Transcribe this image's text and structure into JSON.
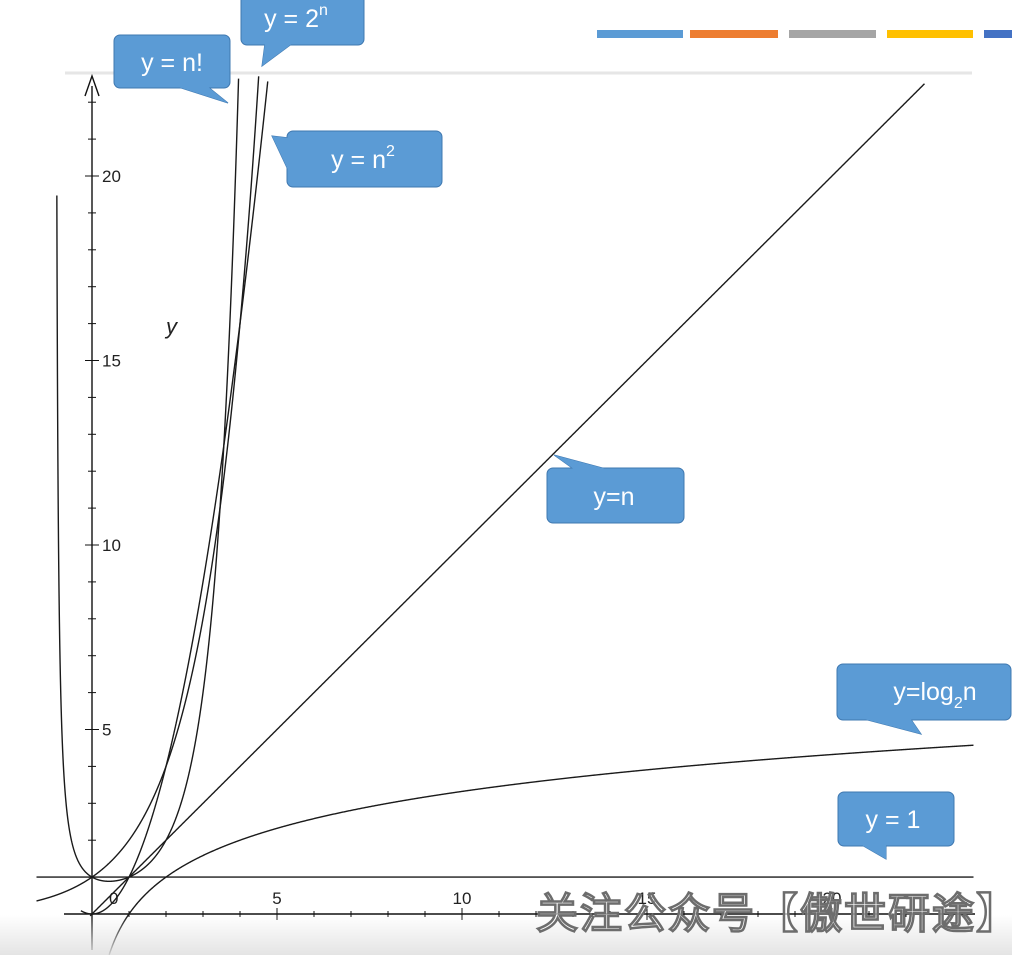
{
  "chart_data": {
    "type": "line",
    "title": "",
    "xlabel": "",
    "ylabel": "y",
    "xlim": [
      -1.5,
      21.5
    ],
    "ylim": [
      -1.2,
      22.5
    ],
    "x_ticks": [
      5,
      10,
      15,
      20
    ],
    "y_ticks": [
      5,
      10,
      15,
      20
    ],
    "origin_label": "0",
    "grid": false,
    "series": [
      {
        "name": "y = n!",
        "label_main": "y = n!",
        "label_sup": "",
        "label_sub": "",
        "label_tail": "",
        "function": "factorial",
        "x_range": [
          -0.95,
          4.1
        ]
      },
      {
        "name": "y = 2^n",
        "label_main": "y = 2",
        "label_sup": "n",
        "label_sub": "",
        "label_tail": "",
        "function": "exp2",
        "x_range": [
          -1.5,
          4.6
        ]
      },
      {
        "name": "y = n^2",
        "label_main": "y = n",
        "label_sup": "2",
        "label_sub": "",
        "label_tail": "",
        "function": "square",
        "x_range": [
          -0.3,
          4.75
        ]
      },
      {
        "name": "y=n",
        "label_main": "y=n",
        "label_sup": "",
        "label_sub": "",
        "label_tail": "",
        "function": "linear",
        "x_range": [
          -0.05,
          22.5
        ]
      },
      {
        "name": "y=log2n",
        "label_main": "y=log",
        "label_sup": "",
        "label_sub": "2",
        "label_tail": "n",
        "function": "log2",
        "x_range": [
          0.45,
          24
        ]
      },
      {
        "name": "y = 1",
        "label_main": "y = 1",
        "label_sup": "",
        "label_sub": "",
        "label_tail": "",
        "function": "constant",
        "x_range": [
          -1.5,
          24
        ]
      }
    ]
  },
  "top_bars": [
    {
      "color": "#5b9bd5"
    },
    {
      "color": "#ed7d31"
    },
    {
      "color": "#a5a5a5"
    },
    {
      "color": "#ffc000"
    },
    {
      "color": "#4472c4"
    }
  ],
  "callout_color": "#5b9bd5",
  "watermark": "关注公众号【傲世研途】"
}
